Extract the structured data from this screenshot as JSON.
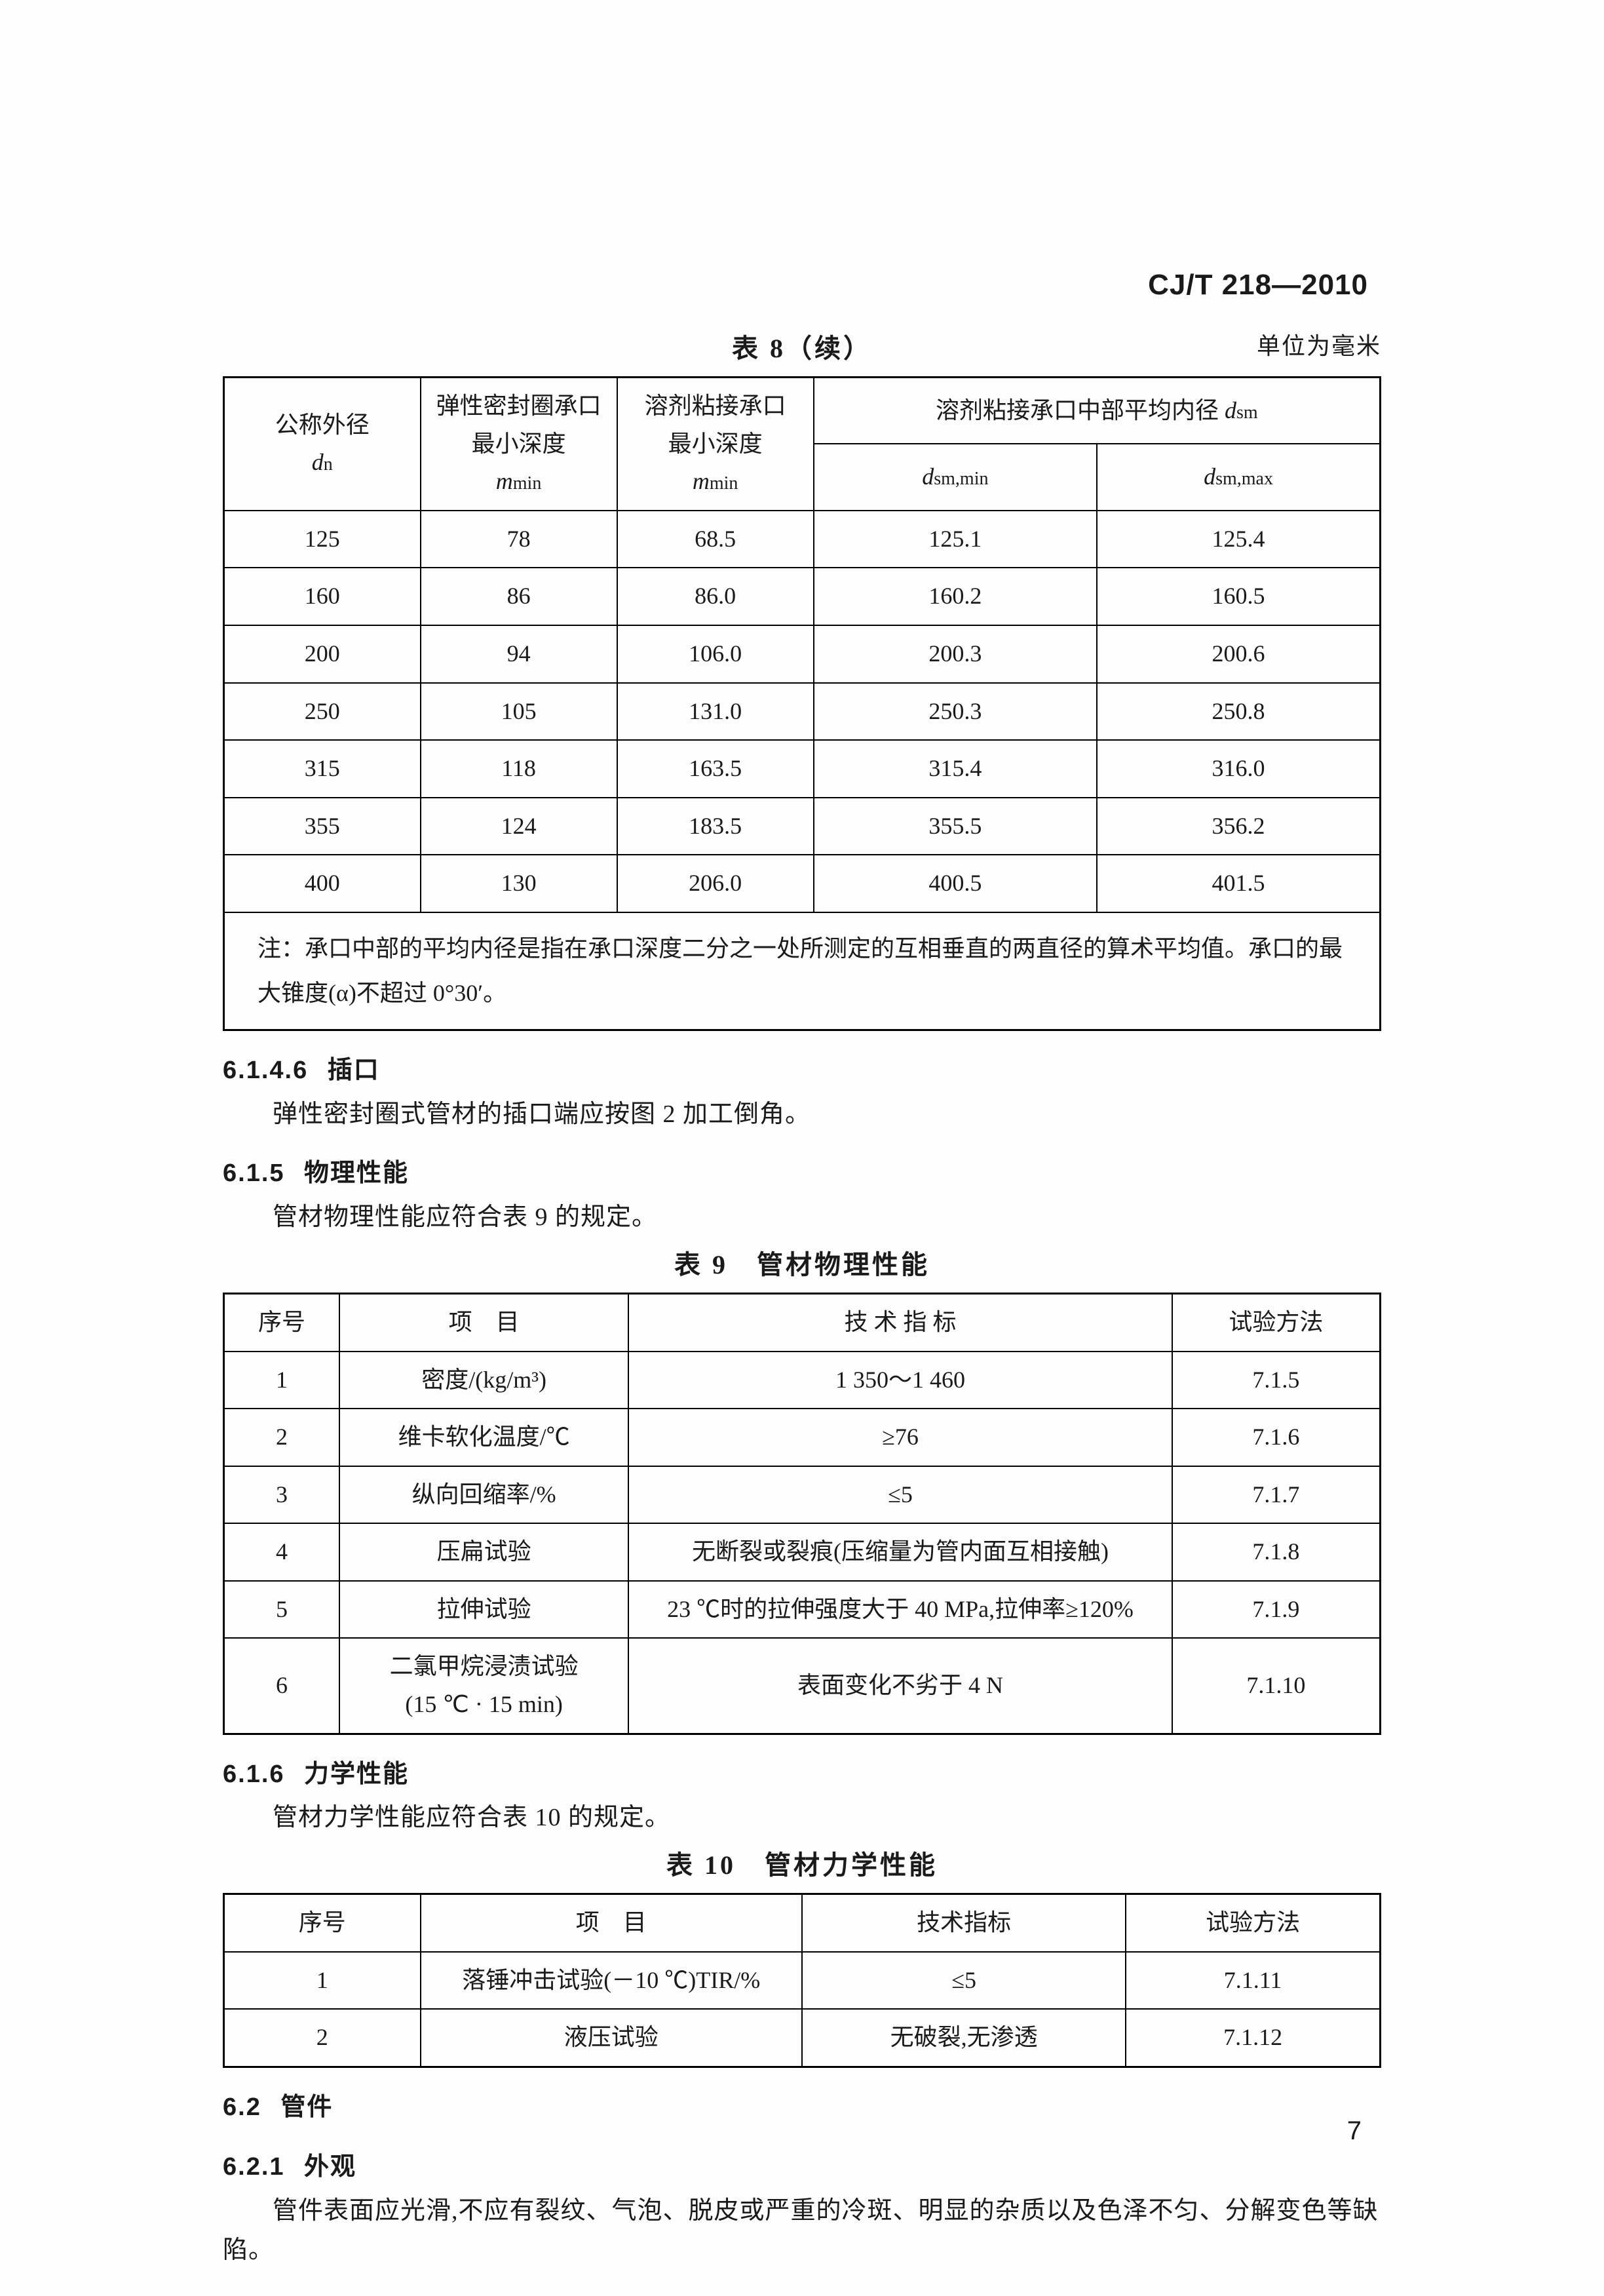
{
  "doc_id": "CJ/T 218—2010",
  "page_number": "7",
  "table8": {
    "caption": "表 8（续）",
    "unit": "单位为毫米",
    "headers": {
      "col1_l1": "公称外径",
      "col1_l2": "dₙ",
      "col2_l1": "弹性密封圈承口",
      "col2_l2": "最小深度",
      "col2_l3": "m_min",
      "col3_l1": "溶剂粘接承口",
      "col3_l2": "最小深度",
      "col3_l3": "m_min",
      "col45_l1": "溶剂粘接承口中部平均内径 d_sm",
      "col4_l2": "d_sm,min",
      "col5_l2": "d_sm,max"
    },
    "rows": [
      [
        "125",
        "78",
        "68.5",
        "125.1",
        "125.4"
      ],
      [
        "160",
        "86",
        "86.0",
        "160.2",
        "160.5"
      ],
      [
        "200",
        "94",
        "106.0",
        "200.3",
        "200.6"
      ],
      [
        "250",
        "105",
        "131.0",
        "250.3",
        "250.8"
      ],
      [
        "315",
        "118",
        "163.5",
        "315.4",
        "316.0"
      ],
      [
        "355",
        "124",
        "183.5",
        "355.5",
        "356.2"
      ],
      [
        "400",
        "130",
        "206.0",
        "400.5",
        "401.5"
      ]
    ],
    "note": "注：承口中部的平均内径是指在承口深度二分之一处所测定的互相垂直的两直径的算术平均值。承口的最大锥度(α)不超过 0°30′。"
  },
  "s6146": {
    "num": "6.1.4.6",
    "title": "插口",
    "text": "弹性密封圈式管材的插口端应按图 2 加工倒角。"
  },
  "s615": {
    "num": "6.1.5",
    "title": "物理性能",
    "text": "管材物理性能应符合表 9 的规定。"
  },
  "table9": {
    "caption": "表 9　管材物理性能",
    "headers": [
      "序号",
      "项　目",
      "技 术 指 标",
      "试验方法"
    ],
    "rows": [
      [
        "1",
        "密度/(kg/m³)",
        "1 350～1 460",
        "7.1.5"
      ],
      [
        "2",
        "维卡软化温度/℃",
        "≥76",
        "7.1.6"
      ],
      [
        "3",
        "纵向回缩率/%",
        "≤5",
        "7.1.7"
      ],
      [
        "4",
        "压扁试验",
        "无断裂或裂痕(压缩量为管内面互相接触)",
        "7.1.8"
      ],
      [
        "5",
        "拉伸试验",
        "23 ℃时的拉伸强度大于 40 MPa,拉伸率≥120%",
        "7.1.9"
      ],
      [
        "6",
        "二氯甲烷浸渍试验\n(15 ℃ · 15 min)",
        "表面变化不劣于 4 N",
        "7.1.10"
      ]
    ],
    "widths": [
      "10%",
      "25%",
      "47%",
      "18%"
    ]
  },
  "s616": {
    "num": "6.1.6",
    "title": "力学性能",
    "text": "管材力学性能应符合表 10 的规定。"
  },
  "table10": {
    "caption": "表 10　管材力学性能",
    "headers": [
      "序号",
      "项　目",
      "技术指标",
      "试验方法"
    ],
    "rows": [
      [
        "1",
        "落锤冲击试验(－10 ℃)TIR/%",
        "≤5",
        "7.1.11"
      ],
      [
        "2",
        "液压试验",
        "无破裂,无渗透",
        "7.1.12"
      ]
    ],
    "widths": [
      "17%",
      "33%",
      "28%",
      "22%"
    ]
  },
  "s62": {
    "num": "6.2",
    "title": "管件"
  },
  "s621": {
    "num": "6.2.1",
    "title": "外观",
    "text": "管件表面应光滑,不应有裂纹、气泡、脱皮或严重的冷斑、明显的杂质以及色泽不匀、分解变色等缺陷。"
  }
}
